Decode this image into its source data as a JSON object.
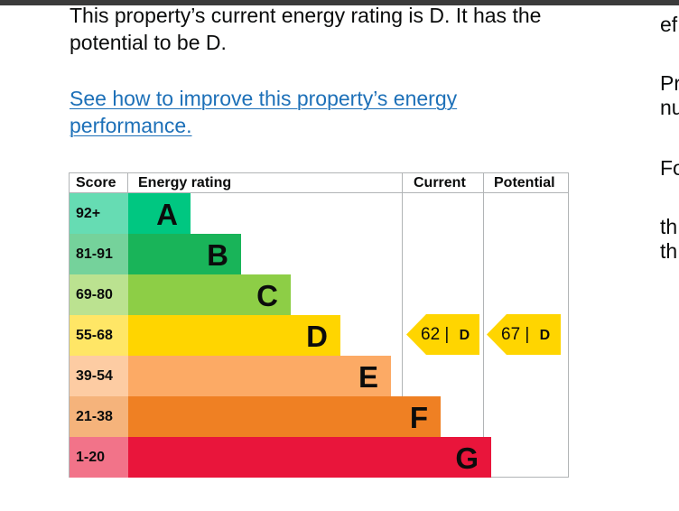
{
  "intro": {
    "text": "This property’s current energy rating is D. It has the potential to be D."
  },
  "improve_link": "See how to improve this property’s energy performance.",
  "side_fragments": [
    "ef",
    "Pr",
    "nu",
    "Fo",
    "th",
    "th"
  ],
  "epc_table": {
    "headers": {
      "score": "Score",
      "rating": "Energy rating",
      "current": "Current",
      "potential": "Potential"
    },
    "bands": [
      {
        "score": "92+",
        "letter": "A",
        "color": "#00c781",
        "score_bg": "#66dcb3",
        "fill": 0.17
      },
      {
        "score": "81-91",
        "letter": "B",
        "color": "#19b459",
        "score_bg": "#75d29b",
        "fill": 0.27
      },
      {
        "score": "69-80",
        "letter": "C",
        "color": "#8dce46",
        "score_bg": "#bbe290",
        "fill": 0.37
      },
      {
        "score": "55-68",
        "letter": "D",
        "color": "#ffd500",
        "score_bg": "#ffe666",
        "fill": 0.47
      },
      {
        "score": "39-54",
        "letter": "E",
        "color": "#fcaa65",
        "score_bg": "#fdcca3",
        "fill": 0.57
      },
      {
        "score": "21-38",
        "letter": "F",
        "color": "#ef8023",
        "score_bg": "#f5b37b",
        "fill": 0.67
      },
      {
        "score": "1-20",
        "letter": "G",
        "color": "#e9153b",
        "score_bg": "#f27389",
        "fill": 0.77
      }
    ],
    "current": {
      "value": "62",
      "separator": "|",
      "letter": "D",
      "color": "#ffd500"
    },
    "potential": {
      "value": "67",
      "separator": "|",
      "letter": "D",
      "color": "#ffd500"
    }
  }
}
